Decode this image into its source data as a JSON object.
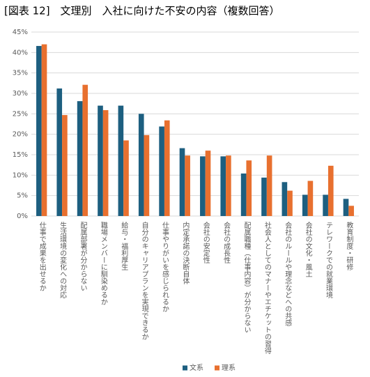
{
  "chart_data": {
    "type": "bar",
    "title": "[図表 12]　文理別　入社に向けた不安の内容（複数回答）",
    "categories": [
      "仕事で成果を出せるか",
      "生活環境の変化への対応",
      "配属部署が分からない",
      "職場メンバーに馴染めるか",
      "給与・福利厚生",
      "自分のキャリアプランを実現できるか",
      "仕事やりがいを感じられるか",
      "内定承諾の決断自体",
      "会社の安定性",
      "会社の成長性",
      "配属職種（仕事内容）が分からない",
      "社会人としてのマナーやエチケットの習得",
      "会社のルールや理念などへの共感",
      "会社の文化・風土",
      "テレワークでの就業環境",
      "教育制度・研修"
    ],
    "series": [
      {
        "name": "文系",
        "color": "#1d5f80",
        "values": [
          41.6,
          31.2,
          28.1,
          27.0,
          27.0,
          25.0,
          21.9,
          16.6,
          14.6,
          14.6,
          10.4,
          9.4,
          8.3,
          5.2,
          5.2,
          4.2
        ]
      },
      {
        "name": "理系",
        "color": "#e8702f",
        "values": [
          42.0,
          24.7,
          32.1,
          25.9,
          18.5,
          19.8,
          23.4,
          14.8,
          16.0,
          14.8,
          13.6,
          14.8,
          6.2,
          8.6,
          12.3,
          2.5
        ]
      }
    ],
    "ylim": [
      0,
      45
    ],
    "yticks": [
      {
        "value": 0,
        "label": "0%"
      },
      {
        "value": 5,
        "label": "5%"
      },
      {
        "value": 10,
        "label": "10%"
      },
      {
        "value": 15,
        "label": "15%"
      },
      {
        "value": 20,
        "label": "20%"
      },
      {
        "value": 25,
        "label": "25%"
      },
      {
        "value": 30,
        "label": "30%"
      },
      {
        "value": 35,
        "label": "35%"
      },
      {
        "value": 40,
        "label": "40%"
      },
      {
        "value": 45,
        "label": "45%"
      }
    ],
    "grid": true,
    "legend": "bottom"
  }
}
